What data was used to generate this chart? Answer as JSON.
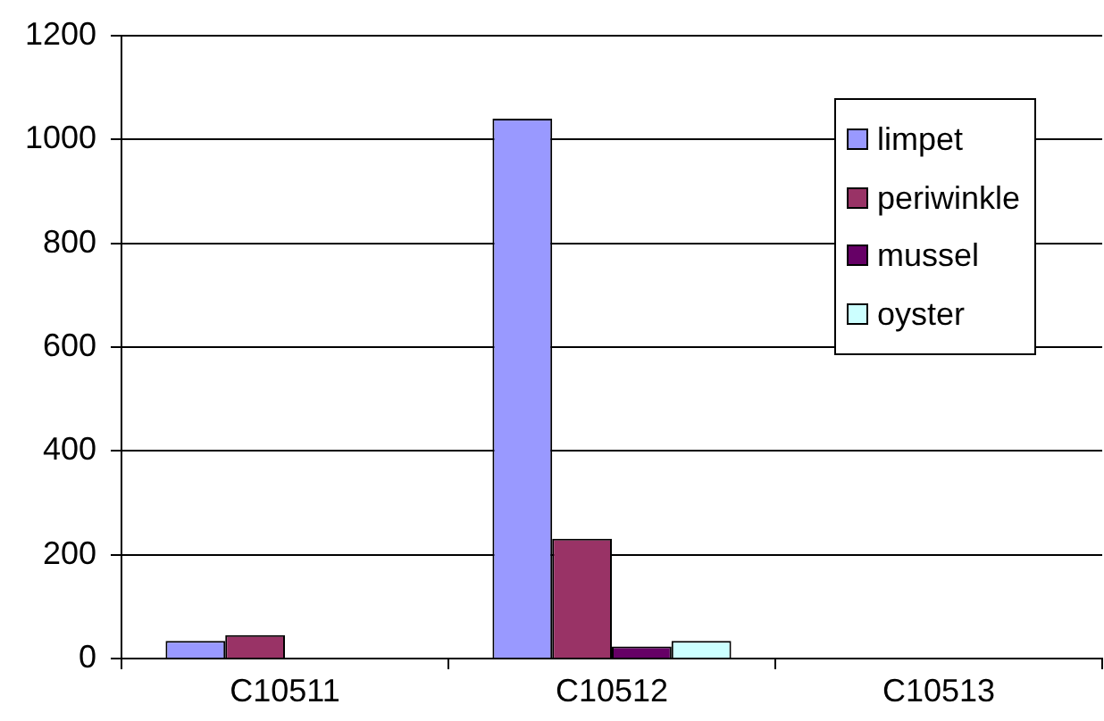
{
  "chart_data": {
    "type": "bar",
    "categories": [
      "C10511",
      "C10512",
      "C10513"
    ],
    "series": [
      {
        "name": "limpet",
        "color": "#9999ff",
        "values": [
          34,
          1040,
          null
        ]
      },
      {
        "name": "periwinkle",
        "color": "#993366",
        "values": [
          45,
          231,
          null
        ]
      },
      {
        "name": "mussel",
        "color": "#660066",
        "values": [
          null,
          23,
          null
        ]
      },
      {
        "name": "oyster",
        "color": "#ccffff",
        "values": [
          null,
          34,
          null
        ]
      }
    ],
    "ylim": [
      0,
      1200
    ],
    "yticks": [
      0,
      200,
      400,
      600,
      800,
      1000,
      1200
    ],
    "grid": "y",
    "legend": "top right"
  }
}
